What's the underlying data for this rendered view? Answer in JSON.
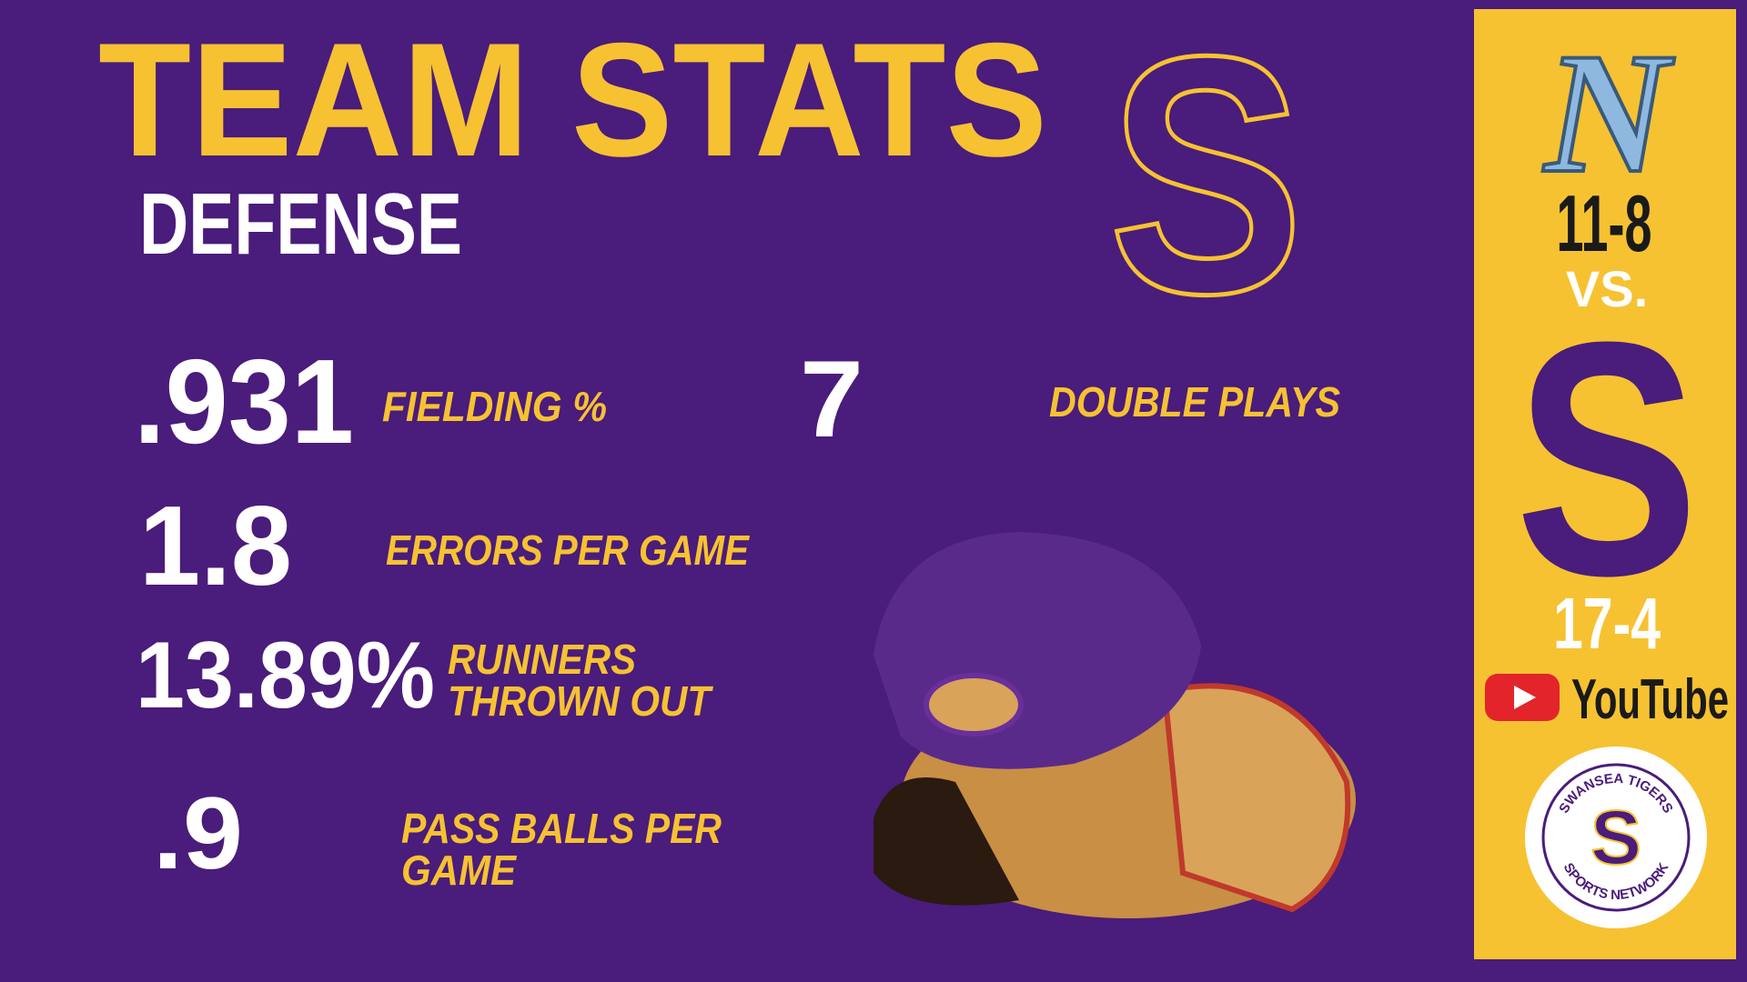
{
  "header": {
    "title": "TEAM STATS",
    "subtitle": "DEFENSE",
    "logo_letter": "S"
  },
  "stats": [
    {
      "value": ".931",
      "label_lines": [
        "FIELDING %"
      ]
    },
    {
      "value": "1.8",
      "label_lines": [
        "ERRORS PER GAME"
      ]
    },
    {
      "value": "13.89%",
      "label_lines": [
        "RUNNERS",
        "THROWN OUT"
      ]
    },
    {
      "value": ".9",
      "label_lines": [
        "PASS BALLS PER",
        "GAME"
      ]
    },
    {
      "value": "7",
      "label_lines": [
        "DOUBLE PLAYS"
      ]
    }
  ],
  "sidebar": {
    "away_logo": "N",
    "away_record": "11-8",
    "versus": "VS.",
    "home_logo": "S",
    "home_record": "17-4",
    "stream": "YouTube",
    "network": {
      "top": "SWANSEA TIGERS",
      "bottom": "SPORTS NETWORK",
      "letter": "S"
    }
  }
}
